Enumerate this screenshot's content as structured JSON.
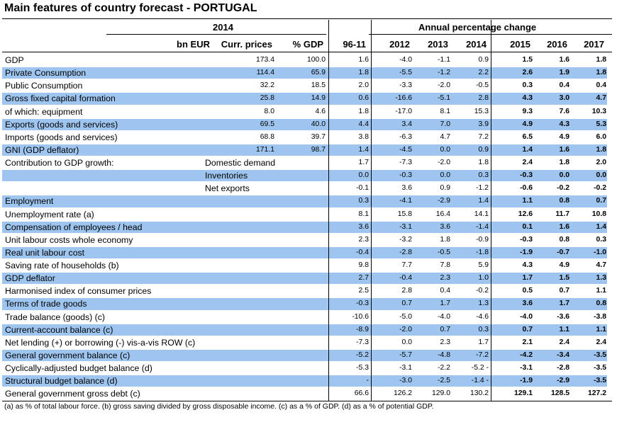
{
  "title": "Main features of country forecast - PORTUGAL",
  "header": {
    "year": "2014",
    "annual_label": "Annual percentage change",
    "col_bn": "bn EUR",
    "col_curr": "Curr. prices",
    "col_gdp": "% GDP",
    "col_avg": "96-11",
    "years": [
      "2012",
      "2013",
      "2014",
      "2015",
      "2016",
      "2017"
    ]
  },
  "rows": [
    {
      "label": "GDP",
      "sub": "",
      "hl": false,
      "v": [
        "173.4",
        "100.0",
        "1.6",
        "-4.0",
        "-1.1",
        "0.9",
        "1.5",
        "1.6",
        "1.8"
      ]
    },
    {
      "label": "Private Consumption",
      "sub": "",
      "hl": true,
      "v": [
        "114.4",
        "65.9",
        "1.8",
        "-5.5",
        "-1.2",
        "2.2",
        "2.6",
        "1.9",
        "1.8"
      ]
    },
    {
      "label": "Public Consumption",
      "sub": "",
      "hl": false,
      "v": [
        "32.2",
        "18.5",
        "2.0",
        "-3.3",
        "-2.0",
        "-0.5",
        "0.3",
        "0.4",
        "0.4"
      ]
    },
    {
      "label": "Gross fixed capital formation",
      "sub": "",
      "hl": true,
      "v": [
        "25.8",
        "14.9",
        "0.6",
        "-16.6",
        "-5.1",
        "2.8",
        "4.3",
        "3.0",
        "4.7"
      ]
    },
    {
      "label": "of which: equipment",
      "sub": "",
      "hl": false,
      "v": [
        "8.0",
        "4.6",
        "1.8",
        "-17.0",
        "8.1",
        "15.3",
        "9.3",
        "7.6",
        "10.3"
      ]
    },
    {
      "label": "Exports (goods and services)",
      "sub": "",
      "hl": true,
      "v": [
        "69.5",
        "40.0",
        "4.4",
        "3.4",
        "7.0",
        "3.9",
        "4.9",
        "4.3",
        "5.3"
      ]
    },
    {
      "label": "Imports (goods and services)",
      "sub": "",
      "hl": false,
      "v": [
        "68.8",
        "39.7",
        "3.8",
        "-6.3",
        "4.7",
        "7.2",
        "6.5",
        "4.9",
        "6.0"
      ]
    },
    {
      "label": "GNI (GDP deflator)",
      "sub": "",
      "hl": true,
      "v": [
        "171.1",
        "98.7",
        "1.4",
        "-4.5",
        "0.0",
        "0.9",
        "1.4",
        "1.6",
        "1.8"
      ]
    },
    {
      "label": "Contribution to GDP growth:",
      "sub": "Domestic demand",
      "hl": false,
      "v": [
        "",
        "",
        "1.7",
        "-7.3",
        "-2.0",
        "1.8",
        "2.4",
        "1.8",
        "2.0"
      ]
    },
    {
      "label": "",
      "sub": "Inventories",
      "hl": true,
      "v": [
        "",
        "",
        "0.0",
        "-0.3",
        "0.0",
        "0.3",
        "-0.3",
        "0.0",
        "0.0"
      ]
    },
    {
      "label": "",
      "sub": "Net exports",
      "hl": false,
      "v": [
        "",
        "",
        "-0.1",
        "3.6",
        "0.9",
        "-1.2",
        "-0.6",
        "-0.2",
        "-0.2"
      ]
    },
    {
      "label": "Employment",
      "sub": "",
      "hl": true,
      "v": [
        "",
        "",
        "0.3",
        "-4.1",
        "-2.9",
        "1.4",
        "1.1",
        "0.8",
        "0.7"
      ]
    },
    {
      "label": "Unemployment rate (a)",
      "sub": "",
      "hl": false,
      "v": [
        "",
        "",
        "8.1",
        "15.8",
        "16.4",
        "14.1",
        "12.6",
        "11.7",
        "10.8"
      ]
    },
    {
      "label": "Compensation of employees / head",
      "sub": "",
      "hl": true,
      "v": [
        "",
        "",
        "3.6",
        "-3.1",
        "3.6",
        "-1.4",
        "0.1",
        "1.6",
        "1.4"
      ]
    },
    {
      "label": "Unit labour costs whole economy",
      "sub": "",
      "hl": false,
      "v": [
        "",
        "",
        "2.3",
        "-3.2",
        "1.8",
        "-0.9",
        "-0.3",
        "0.8",
        "0.3"
      ]
    },
    {
      "label": "Real unit labour cost",
      "sub": "",
      "hl": true,
      "v": [
        "",
        "",
        "-0.4",
        "-2.8",
        "-0.5",
        "-1.8",
        "-1.9",
        "-0.7",
        "-1.0"
      ]
    },
    {
      "label": "Saving rate of households (b)",
      "sub": "",
      "hl": false,
      "v": [
        "",
        "",
        "9.8",
        "7.7",
        "7.8",
        "5.9",
        "4.3",
        "4.9",
        "4.7"
      ]
    },
    {
      "label": "GDP deflator",
      "sub": "",
      "hl": true,
      "v": [
        "",
        "",
        "2.7",
        "-0.4",
        "2.3",
        "1.0",
        "1.7",
        "1.5",
        "1.3"
      ]
    },
    {
      "label": "Harmonised index of consumer prices",
      "sub": "",
      "hl": false,
      "v": [
        "",
        "",
        "2.5",
        "2.8",
        "0.4",
        "-0.2",
        "0.5",
        "0.7",
        "1.1"
      ]
    },
    {
      "label": "Terms of trade goods",
      "sub": "",
      "hl": true,
      "v": [
        "",
        "",
        "-0.3",
        "0.7",
        "1.7",
        "1.3",
        "3.6",
        "1.7",
        "0.8"
      ]
    },
    {
      "label": "Trade balance (goods) (c)",
      "sub": "",
      "hl": false,
      "v": [
        "",
        "",
        "-10.6",
        "-5.0",
        "-4.0",
        "-4.6",
        "-4.0",
        "-3.6",
        "-3.8"
      ]
    },
    {
      "label": "Current-account balance (c)",
      "sub": "",
      "hl": true,
      "v": [
        "",
        "",
        "-8.9",
        "-2.0",
        "0.7",
        "0.3",
        "0.7",
        "1.1",
        "1.1"
      ]
    },
    {
      "label": "Net lending (+) or borrowing (-) vis-a-vis ROW (c)",
      "sub": "",
      "hl": false,
      "v": [
        "",
        "",
        "-7.3",
        "0.0",
        "2.3",
        "1.7",
        "2.1",
        "2.4",
        "2.4"
      ]
    },
    {
      "label": "General government balance (c)",
      "sub": "",
      "hl": true,
      "v": [
        "",
        "",
        "-5.2",
        "-5.7",
        "-4.8",
        "-7.2",
        "-4.2",
        "-3.4",
        "-3.5"
      ]
    },
    {
      "label": "Cyclically-adjusted budget balance (d)",
      "sub": "",
      "hl": false,
      "v": [
        "",
        "",
        "-5.3",
        "-3.1",
        "-2.2",
        "-5.2 -",
        "-3.1",
        "-2.8",
        "-3.5"
      ]
    },
    {
      "label": "Structural budget balance (d)",
      "sub": "",
      "hl": true,
      "v": [
        "",
        "",
        "-",
        "-3.0",
        "-2.5",
        "-1.4 -",
        "-1.9",
        "-2.9",
        "-3.5"
      ]
    },
    {
      "label": "General government gross debt (c)",
      "sub": "",
      "hl": false,
      "v": [
        "",
        "",
        "66.6",
        "126.2",
        "129.0",
        "130.2",
        "129.1",
        "128.5",
        "127.2"
      ]
    }
  ],
  "footnote": "(a) as % of total labour force. (b) gross saving divided by gross disposable income. (c) as a % of GDP. (d) as a % of potential GDP.",
  "colors": {
    "highlight": "#9ec5ef",
    "text": "#000000",
    "rule": "#000000"
  }
}
